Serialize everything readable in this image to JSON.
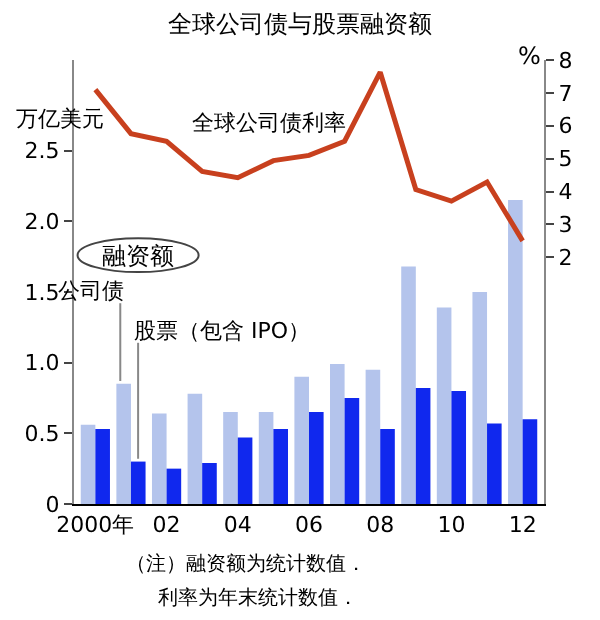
{
  "chart_data": {
    "type": "bar",
    "title": "全球公司债与股票融资额",
    "ylabel": "万亿美元",
    "y2label": "%",
    "legend_title": "融资额",
    "categories": [
      "2000年",
      null,
      "02",
      null,
      "04",
      null,
      "06",
      null,
      "08",
      null,
      "10",
      null,
      "12"
    ],
    "series": [
      {
        "name": "公司债",
        "color": "#b4c4ec",
        "values": [
          0.56,
          0.85,
          0.64,
          0.78,
          0.65,
          0.65,
          0.9,
          0.99,
          0.95,
          1.68,
          1.39,
          1.5,
          2.15
        ]
      },
      {
        "name": "股票（包含 IPO）",
        "color": "#1028ee",
        "values": [
          0.53,
          0.3,
          0.25,
          0.29,
          0.47,
          0.53,
          0.65,
          0.75,
          0.53,
          0.82,
          0.8,
          0.57,
          0.6
        ]
      },
      {
        "name": "全球公司债利率",
        "type": "line",
        "axis": "y2",
        "color": "#c8401e",
        "values": [
          7.1,
          5.76,
          5.53,
          4.61,
          4.42,
          4.94,
          5.1,
          5.53,
          7.63,
          4.06,
          3.71,
          4.29,
          2.5
        ]
      }
    ],
    "ylim": [
      0,
      3.14
    ],
    "yticks": [
      0,
      0.5,
      {
        "value": 1,
        "label": "1.0"
      },
      1.5,
      {
        "value": 2,
        "label": "2.0"
      },
      2.5
    ],
    "y2lim": [
      -5.5,
      8
    ],
    "y2ticks": [
      2,
      3,
      4,
      5,
      6,
      7,
      8
    ],
    "legend": false,
    "marker": "none",
    "line_style": "solid",
    "annotations": [
      "（注）融资额为统计数值．",
      "利率为年末统计数值．"
    ]
  }
}
